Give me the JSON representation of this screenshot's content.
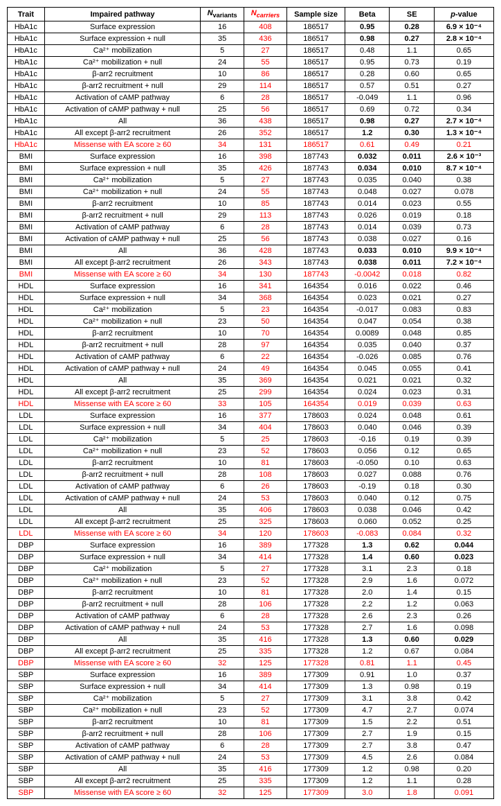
{
  "columns": {
    "trait": "Trait",
    "pathway": "Impaired pathway",
    "nvariants_prefix": "N",
    "nvariants_sub": "variants",
    "ncarriers_prefix": "N",
    "ncarriers_sub": "carriers",
    "sample": "Sample size",
    "beta": "Beta",
    "se": "SE",
    "pvalue_prefix": "p",
    "pvalue_suffix": "-value"
  },
  "ncarriers_header_red": true,
  "colors": {
    "red": "#ff0000",
    "black": "#000000"
  },
  "rows": [
    {
      "trait": "HbA1c",
      "pathway": "Surface expression",
      "nv": "16",
      "nc": "408",
      "ss": "186517",
      "beta": "0.95",
      "se": "0.28",
      "p": "6.9 × 10⁻⁴",
      "bold": true
    },
    {
      "trait": "HbA1c",
      "pathway": "Surface expression + null",
      "nv": "35",
      "nc": "436",
      "ss": "186517",
      "beta": "0.98",
      "se": "0.27",
      "p": "2.8 × 10⁻⁴",
      "bold": true
    },
    {
      "trait": "HbA1c",
      "pathway": "Ca²⁺ mobilization",
      "nv": "5",
      "nc": "27",
      "ss": "186517",
      "beta": "0.48",
      "se": "1.1",
      "p": "0.65"
    },
    {
      "trait": "HbA1c",
      "pathway": "Ca²⁺ mobilization + null",
      "nv": "24",
      "nc": "55",
      "ss": "186517",
      "beta": "0.95",
      "se": "0.73",
      "p": "0.19"
    },
    {
      "trait": "HbA1c",
      "pathway": "β-arr2 recruitment",
      "nv": "10",
      "nc": "86",
      "ss": "186517",
      "beta": "0.28",
      "se": "0.60",
      "p": "0.65"
    },
    {
      "trait": "HbA1c",
      "pathway": "β-arr2 recruitment + null",
      "nv": "29",
      "nc": "114",
      "ss": "186517",
      "beta": "0.57",
      "se": "0.51",
      "p": "0.27"
    },
    {
      "trait": "HbA1c",
      "pathway": "Activation of cAMP pathway",
      "nv": "6",
      "nc": "28",
      "ss": "186517",
      "beta": "-0.049",
      "se": "1.1",
      "p": "0.96"
    },
    {
      "trait": "HbA1c",
      "pathway": "Activation of cAMP pathway + null",
      "nv": "25",
      "nc": "56",
      "ss": "186517",
      "beta": "0.69",
      "se": "0.72",
      "p": "0.34"
    },
    {
      "trait": "HbA1c",
      "pathway": "All",
      "nv": "36",
      "nc": "438",
      "ss": "186517",
      "beta": "0.98",
      "se": "0.27",
      "p": "2.7 × 10⁻⁴",
      "bold": true
    },
    {
      "trait": "HbA1c",
      "pathway": "All except β-arr2 recruitment",
      "nv": "26",
      "nc": "352",
      "ss": "186517",
      "beta": "1.2",
      "se": "0.30",
      "p": "1.3 × 10⁻⁴",
      "bold": true
    },
    {
      "trait": "HbA1c",
      "pathway": "Missense with EA score ≥ 60",
      "nv": "34",
      "nc": "131",
      "ss": "186517",
      "beta": "0.61",
      "se": "0.49",
      "p": "0.21",
      "red": true
    },
    {
      "trait": "BMI",
      "pathway": "Surface expression",
      "nv": "16",
      "nc": "398",
      "ss": "187743",
      "beta": "0.032",
      "se": "0.011",
      "p": "2.6 × 10⁻³",
      "bold": true
    },
    {
      "trait": "BMI",
      "pathway": "Surface expression + null",
      "nv": "35",
      "nc": "426",
      "ss": "187743",
      "beta": "0.034",
      "se": "0.010",
      "p": "8.7 × 10⁻⁴",
      "bold": true
    },
    {
      "trait": "BMI",
      "pathway": "Ca²⁺ mobilization",
      "nv": "5",
      "nc": "27",
      "ss": "187743",
      "beta": "0.035",
      "se": "0.040",
      "p": "0.38"
    },
    {
      "trait": "BMI",
      "pathway": "Ca²⁺ mobilization + null",
      "nv": "24",
      "nc": "55",
      "ss": "187743",
      "beta": "0.048",
      "se": "0.027",
      "p": "0.078"
    },
    {
      "trait": "BMI",
      "pathway": "β-arr2 recruitment",
      "nv": "10",
      "nc": "85",
      "ss": "187743",
      "beta": "0.014",
      "se": "0.023",
      "p": "0.55"
    },
    {
      "trait": "BMI",
      "pathway": "β-arr2 recruitment + null",
      "nv": "29",
      "nc": "113",
      "ss": "187743",
      "beta": "0.026",
      "se": "0.019",
      "p": "0.18"
    },
    {
      "trait": "BMI",
      "pathway": "Activation of cAMP pathway",
      "nv": "6",
      "nc": "28",
      "ss": "187743",
      "beta": "0.014",
      "se": "0.039",
      "p": "0.73"
    },
    {
      "trait": "BMI",
      "pathway": "Activation of cAMP pathway + null",
      "nv": "25",
      "nc": "56",
      "ss": "187743",
      "beta": "0.038",
      "se": "0.027",
      "p": "0.16"
    },
    {
      "trait": "BMI",
      "pathway": "All",
      "nv": "36",
      "nc": "428",
      "ss": "187743",
      "beta": "0.033",
      "se": "0.010",
      "p": "9.9 × 10⁻⁴",
      "bold": true
    },
    {
      "trait": "BMI",
      "pathway": "All except β-arr2 recruitment",
      "nv": "26",
      "nc": "343",
      "ss": "187743",
      "beta": "0.038",
      "se": "0.011",
      "p": "7.2 × 10⁻⁴",
      "bold": true
    },
    {
      "trait": "BMI",
      "pathway": "Missense with EA score ≥ 60",
      "nv": "34",
      "nc": "130",
      "ss": "187743",
      "beta": "-0.0042",
      "se": "0.018",
      "p": "0.82",
      "red": true
    },
    {
      "trait": "HDL",
      "pathway": "Surface expression",
      "nv": "16",
      "nc": "341",
      "ss": "164354",
      "beta": "0.016",
      "se": "0.022",
      "p": "0.46"
    },
    {
      "trait": "HDL",
      "pathway": "Surface expression + null",
      "nv": "34",
      "nc": "368",
      "ss": "164354",
      "beta": "0.023",
      "se": "0.021",
      "p": "0.27"
    },
    {
      "trait": "HDL",
      "pathway": "Ca²⁺ mobilization",
      "nv": "5",
      "nc": "23",
      "ss": "164354",
      "beta": "-0.017",
      "se": "0.083",
      "p": "0.83"
    },
    {
      "trait": "HDL",
      "pathway": "Ca²⁺ mobilization + null",
      "nv": "23",
      "nc": "50",
      "ss": "164354",
      "beta": "0.047",
      "se": "0.054",
      "p": "0.38"
    },
    {
      "trait": "HDL",
      "pathway": "β-arr2 recruitment",
      "nv": "10",
      "nc": "70",
      "ss": "164354",
      "beta": "0.0089",
      "se": "0.048",
      "p": "0.85"
    },
    {
      "trait": "HDL",
      "pathway": "β-arr2 recruitment + null",
      "nv": "28",
      "nc": "97",
      "ss": "164354",
      "beta": "0.035",
      "se": "0.040",
      "p": "0.37"
    },
    {
      "trait": "HDL",
      "pathway": "Activation of cAMP pathway",
      "nv": "6",
      "nc": "22",
      "ss": "164354",
      "beta": "-0.026",
      "se": "0.085",
      "p": "0.76"
    },
    {
      "trait": "HDL",
      "pathway": "Activation of cAMP pathway + null",
      "nv": "24",
      "nc": "49",
      "ss": "164354",
      "beta": "0.045",
      "se": "0.055",
      "p": "0.41"
    },
    {
      "trait": "HDL",
      "pathway": "All",
      "nv": "35",
      "nc": "369",
      "ss": "164354",
      "beta": "0.021",
      "se": "0.021",
      "p": "0.32"
    },
    {
      "trait": "HDL",
      "pathway": "All except β-arr2 recruitment",
      "nv": "25",
      "nc": "299",
      "ss": "164354",
      "beta": "0.024",
      "se": "0.023",
      "p": "0.31"
    },
    {
      "trait": "HDL",
      "pathway": "Missense with EA score ≥ 60",
      "nv": "33",
      "nc": "105",
      "ss": "164354",
      "beta": "0.019",
      "se": "0.039",
      "p": "0.63",
      "red": true
    },
    {
      "trait": "LDL",
      "pathway": "Surface expression",
      "nv": "16",
      "nc": "377",
      "ss": "178603",
      "beta": "0.024",
      "se": "0.048",
      "p": "0.61"
    },
    {
      "trait": "LDL",
      "pathway": "Surface expression + null",
      "nv": "34",
      "nc": "404",
      "ss": "178603",
      "beta": "0.040",
      "se": "0.046",
      "p": "0.39"
    },
    {
      "trait": "LDL",
      "pathway": "Ca²⁺ mobilization",
      "nv": "5",
      "nc": "25",
      "ss": "178603",
      "beta": "-0.16",
      "se": "0.19",
      "p": "0.39"
    },
    {
      "trait": "LDL",
      "pathway": "Ca²⁺ mobilization + null",
      "nv": "23",
      "nc": "52",
      "ss": "178603",
      "beta": "0.056",
      "se": "0.12",
      "p": "0.65"
    },
    {
      "trait": "LDL",
      "pathway": "β-arr2 recruitment",
      "nv": "10",
      "nc": "81",
      "ss": "178603",
      "beta": "-0.050",
      "se": "0.10",
      "p": "0.63"
    },
    {
      "trait": "LDL",
      "pathway": "β-arr2 recruitment + null",
      "nv": "28",
      "nc": "108",
      "ss": "178603",
      "beta": "0.027",
      "se": "0.088",
      "p": "0.76"
    },
    {
      "trait": "LDL",
      "pathway": "Activation of cAMP pathway",
      "nv": "6",
      "nc": "26",
      "ss": "178603",
      "beta": "-0.19",
      "se": "0.18",
      "p": "0.30"
    },
    {
      "trait": "LDL",
      "pathway": "Activation of cAMP pathway + null",
      "nv": "24",
      "nc": "53",
      "ss": "178603",
      "beta": "0.040",
      "se": "0.12",
      "p": "0.75"
    },
    {
      "trait": "LDL",
      "pathway": "All",
      "nv": "35",
      "nc": "406",
      "ss": "178603",
      "beta": "0.038",
      "se": "0.046",
      "p": "0.42"
    },
    {
      "trait": "LDL",
      "pathway": "All except β-arr2 recruitment",
      "nv": "25",
      "nc": "325",
      "ss": "178603",
      "beta": "0.060",
      "se": "0.052",
      "p": "0.25"
    },
    {
      "trait": "LDL",
      "pathway": "Missense with EA score ≥ 60",
      "nv": "34",
      "nc": "120",
      "ss": "178603",
      "beta": "-0.083",
      "se": "0.084",
      "p": "0.32",
      "red": true
    },
    {
      "trait": "DBP",
      "pathway": "Surface expression",
      "nv": "16",
      "nc": "389",
      "ss": "177328",
      "beta": "1.3",
      "se": "0.62",
      "p": "0.044",
      "bold": true
    },
    {
      "trait": "DBP",
      "pathway": "Surface expression + null",
      "nv": "34",
      "nc": "414",
      "ss": "177328",
      "beta": "1.4",
      "se": "0.60",
      "p": "0.023",
      "bold": true
    },
    {
      "trait": "DBP",
      "pathway": "Ca²⁺ mobilization",
      "nv": "5",
      "nc": "27",
      "ss": "177328",
      "beta": "3.1",
      "se": "2.3",
      "p": "0.18"
    },
    {
      "trait": "DBP",
      "pathway": "Ca²⁺ mobilization + null",
      "nv": "23",
      "nc": "52",
      "ss": "177328",
      "beta": "2.9",
      "se": "1.6",
      "p": "0.072"
    },
    {
      "trait": "DBP",
      "pathway": "β-arr2 recruitment",
      "nv": "10",
      "nc": "81",
      "ss": "177328",
      "beta": "2.0",
      "se": "1.4",
      "p": "0.15"
    },
    {
      "trait": "DBP",
      "pathway": "β-arr2 recruitment + null",
      "nv": "28",
      "nc": "106",
      "ss": "177328",
      "beta": "2.2",
      "se": "1.2",
      "p": "0.063"
    },
    {
      "trait": "DBP",
      "pathway": "Activation of cAMP pathway",
      "nv": "6",
      "nc": "28",
      "ss": "177328",
      "beta": "2.6",
      "se": "2.3",
      "p": "0.26"
    },
    {
      "trait": "DBP",
      "pathway": "Activation of cAMP pathway + null",
      "nv": "24",
      "nc": "53",
      "ss": "177328",
      "beta": "2.7",
      "se": "1.6",
      "p": "0.098"
    },
    {
      "trait": "DBP",
      "pathway": "All",
      "nv": "35",
      "nc": "416",
      "ss": "177328",
      "beta": "1.3",
      "se": "0.60",
      "p": "0.029",
      "bold": true
    },
    {
      "trait": "DBP",
      "pathway": "All except β-arr2 recruitment",
      "nv": "25",
      "nc": "335",
      "ss": "177328",
      "beta": "1.2",
      "se": "0.67",
      "p": "0.084"
    },
    {
      "trait": "DBP",
      "pathway": "Missense with EA score ≥ 60",
      "nv": "32",
      "nc": "125",
      "ss": "177328",
      "beta": "0.81",
      "se": "1.1",
      "p": "0.45",
      "red": true
    },
    {
      "trait": "SBP",
      "pathway": "Surface expression",
      "nv": "16",
      "nc": "389",
      "ss": "177309",
      "beta": "0.91",
      "se": "1.0",
      "p": "0.37"
    },
    {
      "trait": "SBP",
      "pathway": "Surface expression + null",
      "nv": "34",
      "nc": "414",
      "ss": "177309",
      "beta": "1.3",
      "se": "0.98",
      "p": "0.19"
    },
    {
      "trait": "SBP",
      "pathway": "Ca²⁺ mobilization",
      "nv": "5",
      "nc": "27",
      "ss": "177309",
      "beta": "3.1",
      "se": "3.8",
      "p": "0.42"
    },
    {
      "trait": "SBP",
      "pathway": "Ca²⁺ mobilization + null",
      "nv": "23",
      "nc": "52",
      "ss": "177309",
      "beta": "4.7",
      "se": "2.7",
      "p": "0.074"
    },
    {
      "trait": "SBP",
      "pathway": "β-arr2 recruitment",
      "nv": "10",
      "nc": "81",
      "ss": "177309",
      "beta": "1.5",
      "se": "2.2",
      "p": "0.51"
    },
    {
      "trait": "SBP",
      "pathway": "β-arr2 recruitment + null",
      "nv": "28",
      "nc": "106",
      "ss": "177309",
      "beta": "2.7",
      "se": "1.9",
      "p": "0.15"
    },
    {
      "trait": "SBP",
      "pathway": "Activation of cAMP pathway",
      "nv": "6",
      "nc": "28",
      "ss": "177309",
      "beta": "2.7",
      "se": "3.8",
      "p": "0.47"
    },
    {
      "trait": "SBP",
      "pathway": "Activation of cAMP pathway + null",
      "nv": "24",
      "nc": "53",
      "ss": "177309",
      "beta": "4.5",
      "se": "2.6",
      "p": "0.084"
    },
    {
      "trait": "SBP",
      "pathway": "All",
      "nv": "35",
      "nc": "416",
      "ss": "177309",
      "beta": "1.2",
      "se": "0.98",
      "p": "0.20"
    },
    {
      "trait": "SBP",
      "pathway": "All except β-arr2 recruitment",
      "nv": "25",
      "nc": "335",
      "ss": "177309",
      "beta": "1.2",
      "se": "1.1",
      "p": "0.28"
    },
    {
      "trait": "SBP",
      "pathway": "Missense with EA score ≥ 60",
      "nv": "32",
      "nc": "125",
      "ss": "177309",
      "beta": "3.0",
      "se": "1.8",
      "p": "0.091",
      "red": true
    }
  ]
}
